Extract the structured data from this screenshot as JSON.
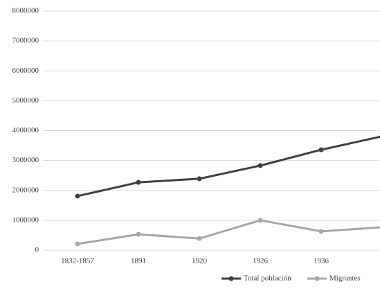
{
  "chart_data": {
    "type": "line",
    "categories": [
      "1832-1857",
      "1891",
      "1920",
      "1926",
      "1936",
      null
    ],
    "series": [
      {
        "name": "Total población",
        "color": "#404040",
        "values": [
          1810000,
          2270000,
          2390000,
          2830000,
          3360000,
          3810000
        ]
      },
      {
        "name": "Migrantes",
        "color": "#a6a6a6",
        "values": [
          210000,
          530000,
          390000,
          1000000,
          630000,
          770000
        ]
      }
    ],
    "ylim": [
      0,
      8000000
    ],
    "yticks": [
      0,
      1000000,
      2000000,
      3000000,
      4000000,
      5000000,
      6000000,
      7000000,
      8000000
    ],
    "grid": true,
    "legend": "bottom"
  }
}
